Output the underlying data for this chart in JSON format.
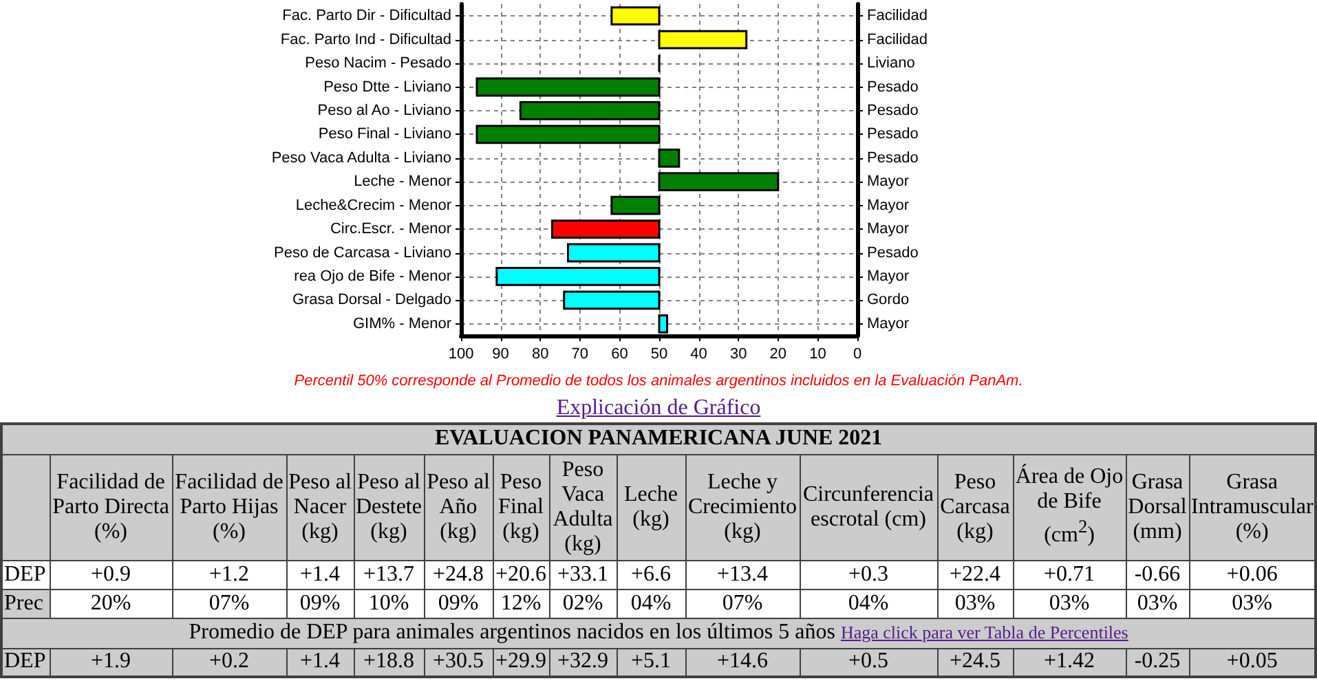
{
  "chart_data": [
    {
      "type": "bar",
      "orientation": "horizontal",
      "categories": [
        "Fac. Parto Dir - Dificultad",
        "Fac. Parto Ind - Dificultad",
        "Peso Nacim - Pesado",
        "Peso Dtte - Liviano",
        "Peso al Ao - Liviano",
        "Peso Final - Liviano",
        "Peso Vaca Adulta - Liviano",
        "Leche - Menor",
        "Leche&Crecim - Menor",
        "Circ.Escr. - Menor",
        "Peso de Carcasa - Liviano",
        "rea Ojo de Bife - Menor",
        "Grasa Dorsal - Delgado",
        "GIM% - Menor"
      ],
      "y2_categories": [
        "Facilidad",
        "Facilidad",
        "Liviano",
        "Pesado",
        "Pesado",
        "Pesado",
        "Pesado",
        "Mayor",
        "Mayor",
        "Mayor",
        "Pesado",
        "Mayor",
        "Gordo",
        "Mayor"
      ],
      "base": [
        50,
        50,
        50,
        50,
        50,
        50,
        50,
        50,
        50,
        50,
        50,
        50,
        50,
        50
      ],
      "values": [
        12,
        -22,
        0,
        46,
        35,
        46,
        -5,
        -30,
        12,
        27,
        23,
        41,
        24,
        -2
      ],
      "colors": [
        "#ffff00",
        "#ffff00",
        "#000000",
        "#008000",
        "#008000",
        "#008000",
        "#008000",
        "#008000",
        "#008000",
        "#ff0000",
        "#00ffff",
        "#00ffff",
        "#00ffff",
        "#00ffff"
      ],
      "xlim": [
        100,
        0
      ],
      "xticks": [
        100,
        90,
        80,
        70,
        60,
        50,
        40,
        30,
        20,
        10,
        0
      ],
      "grid": true,
      "annotations": [
        "Percentil 50% corresponde al Promedio de todos los animales argentinos incluidos en la Evaluación PanAm.",
        "Explicación de Gráfico"
      ]
    },
    {
      "type": "other",
      "title": "EVALUACION PANAMERICANA JUNE 2021",
      "categories": [
        "Facilidad de Parto Directa (%)",
        "Facilidad de Parto Hijas (%)",
        "Peso al Nacer (kg)",
        "Peso al Destete (kg)",
        "Peso al Año (kg)",
        "Peso Final (kg)",
        "Peso Vaca Adulta (kg)",
        "Leche (kg)",
        "Leche y Crecimiento (kg)",
        "Circunferencia escrotal (cm)",
        "Peso Carcasa (kg)",
        "Área de Ojo de Bife (cm$^{2}$)",
        "Grasa Dorsal (mm)",
        "Grasa Intramuscular (%)"
      ],
      "series": [
        {
          "name": "DEP",
          "values": [
            0.9,
            1.2,
            1.4,
            13.7,
            24.8,
            20.6,
            33.1,
            6.6,
            13.4,
            0.3,
            22.4,
            0.71,
            -0.66,
            0.06
          ],
          "value_labels": [
            "+0.9",
            "+1.2",
            "+1.4",
            "+13.7",
            "+24.8",
            "+20.6",
            "+33.1",
            "+6.6",
            "+13.4",
            "+0.3",
            "+22.4",
            "+0.71",
            "-0.66",
            "+0.06"
          ]
        },
        {
          "name": "Prec",
          "values": [
            20,
            7,
            9,
            10,
            9,
            12,
            2,
            4,
            7,
            4,
            3,
            3,
            3,
            3
          ],
          "value_labels": [
            "20%",
            "07%",
            "09%",
            "10%",
            "09%",
            "12%",
            "02%",
            "04%",
            "07%",
            "04%",
            "03%",
            "03%",
            "03%",
            "03%"
          ]
        },
        {
          "name": "DEP",
          "values": [
            1.9,
            0.2,
            1.4,
            18.8,
            30.5,
            29.9,
            32.9,
            5.1,
            14.6,
            0.5,
            24.5,
            1.42,
            -0.25,
            0.05
          ],
          "value_labels": [
            "+1.9",
            "+0.2",
            "+1.4",
            "+18.8",
            "+30.5",
            "+29.9",
            "+32.9",
            "+5.1",
            "+14.6",
            "+0.5",
            "+24.5",
            "+1.42",
            "-0.25",
            "+0.05"
          ]
        }
      ],
      "annotations": [
        "Promedio de DEP para animales argentinos nacidos en los últimos 5 años",
        "Haga click para ver Tabla de Percentiles"
      ]
    }
  ]
}
